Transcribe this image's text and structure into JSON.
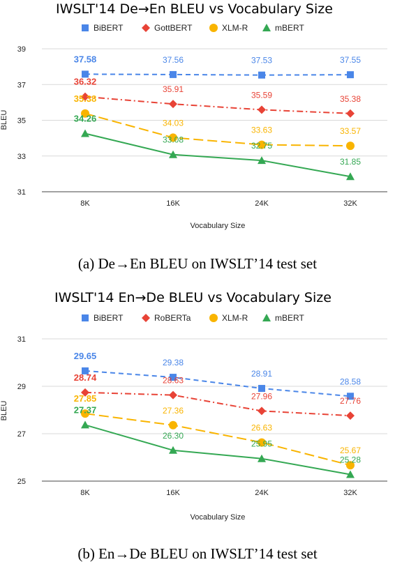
{
  "chart_data": [
    {
      "type": "line",
      "title": "IWSLT'14 De→En BLEU vs Vocabulary Size",
      "xlabel": "Vocabulary Size",
      "ylabel": "BLEU",
      "categories": [
        "8K",
        "16K",
        "24K",
        "32K"
      ],
      "yticks": [
        31,
        33,
        35,
        37,
        39
      ],
      "ylim": [
        31,
        39
      ],
      "grid": true,
      "legend": "top",
      "caption": "(a) De→En BLEU on IWSLT’14 test set",
      "series": [
        {
          "name": "BiBERT",
          "values": [
            37.58,
            37.56,
            37.53,
            37.55
          ],
          "labels": [
            "37.58",
            "37.56",
            "37.53",
            "37.55"
          ],
          "color": "#4a86e8",
          "marker": "square",
          "dash": "7,5"
        },
        {
          "name": "GottBERT",
          "values": [
            36.32,
            35.91,
            35.59,
            35.38
          ],
          "labels": [
            "36.32",
            "35.91",
            "35.59",
            "35.38"
          ],
          "color": "#e84336",
          "marker": "diamond",
          "dash": "9,4,2,4"
        },
        {
          "name": "XLM-R",
          "values": [
            35.38,
            34.03,
            33.63,
            33.57
          ],
          "labels": [
            "35.38",
            "34.03",
            "33.63",
            "33.57"
          ],
          "color": "#f9b400",
          "marker": "circle",
          "dash": "14,6"
        },
        {
          "name": "mBERT",
          "values": [
            34.26,
            33.08,
            32.75,
            31.85
          ],
          "labels": [
            "34.26",
            "33.08",
            "32.75",
            "31.85"
          ],
          "color": "#34a853",
          "marker": "triangle",
          "dash": ""
        }
      ]
    },
    {
      "type": "line",
      "title": "IWSLT'14 En→De BLEU vs Vocabulary Size",
      "xlabel": "Vocabulary Size",
      "ylabel": "BLEU",
      "categories": [
        "8K",
        "16K",
        "24K",
        "32K"
      ],
      "yticks": [
        25,
        27,
        29,
        31
      ],
      "ylim": [
        25,
        31
      ],
      "grid": true,
      "legend": "top",
      "caption": "(b) En→De BLEU on IWSLT’14 test set",
      "series": [
        {
          "name": "BiBERT",
          "values": [
            29.65,
            29.38,
            28.91,
            28.58
          ],
          "labels": [
            "29.65",
            "29.38",
            "28.91",
            "28.58"
          ],
          "color": "#4a86e8",
          "marker": "square",
          "dash": "7,5"
        },
        {
          "name": "RoBERTa",
          "values": [
            28.74,
            28.63,
            27.96,
            27.76
          ],
          "labels": [
            "28.74",
            "28.63",
            "27.96",
            "27.76"
          ],
          "color": "#e84336",
          "marker": "diamond",
          "dash": "9,4,2,4"
        },
        {
          "name": "XLM-R",
          "values": [
            27.85,
            27.36,
            26.63,
            25.67
          ],
          "labels": [
            "27.85",
            "27.36",
            "26.63",
            "25.67"
          ],
          "color": "#f9b400",
          "marker": "circle",
          "dash": "14,6"
        },
        {
          "name": "mBERT",
          "values": [
            27.37,
            26.3,
            25.95,
            25.28
          ],
          "labels": [
            "27.37",
            "26.30",
            "25.95",
            "25.28"
          ],
          "color": "#34a853",
          "marker": "triangle",
          "dash": ""
        }
      ]
    }
  ]
}
